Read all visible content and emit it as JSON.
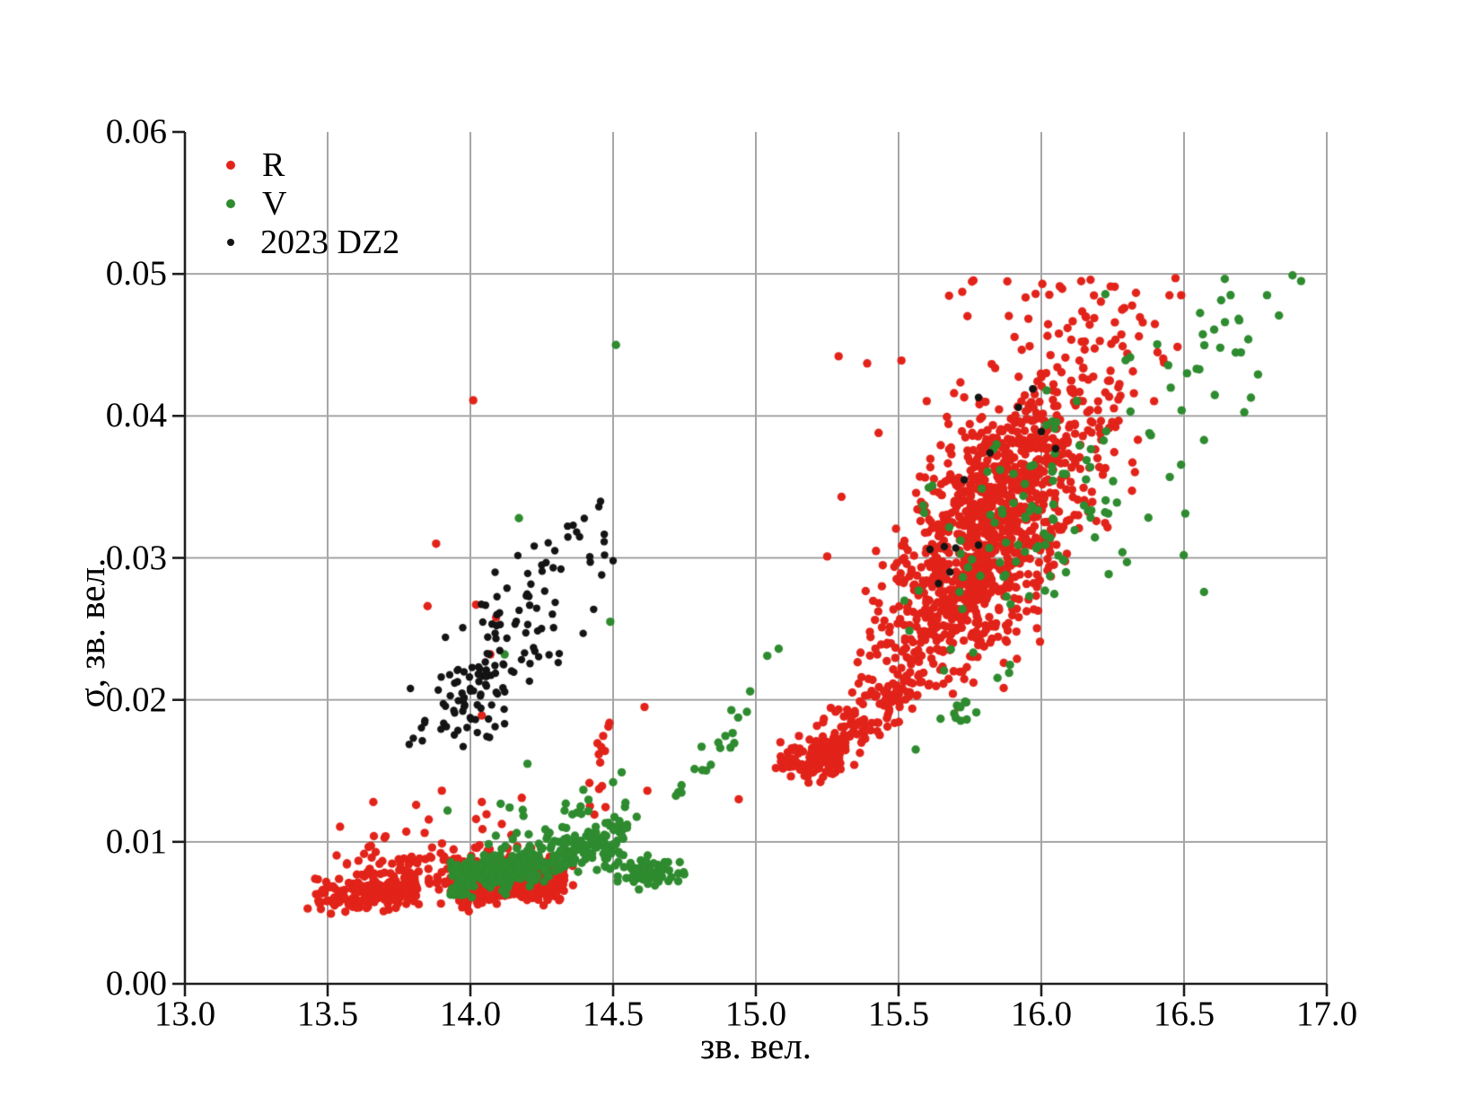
{
  "chart_data": {
    "type": "scatter",
    "xlabel": "зв. вел.",
    "ylabel": "σ, зв. вел.",
    "xlim": [
      13.0,
      17.0
    ],
    "ylim": [
      0.0,
      0.06
    ],
    "grid": {
      "show": true,
      "color": "#a6a6a6",
      "x_values": [
        13.5,
        14.0,
        14.5,
        15.0,
        15.5,
        16.0,
        16.5,
        17.0
      ],
      "y_values": [
        0.01,
        0.02,
        0.03,
        0.04,
        0.05
      ]
    },
    "axis_color": "#1f1f1f",
    "x_ticks": [
      {
        "value": 13.0,
        "label": "13.0"
      },
      {
        "value": 13.5,
        "label": "13.5"
      },
      {
        "value": 14.0,
        "label": "14.0"
      },
      {
        "value": 14.5,
        "label": "14.5"
      },
      {
        "value": 15.0,
        "label": "15.0"
      },
      {
        "value": 15.5,
        "label": "15.5"
      },
      {
        "value": 16.0,
        "label": "16.0"
      },
      {
        "value": 16.5,
        "label": "16.5"
      },
      {
        "value": 17.0,
        "label": "17.0"
      }
    ],
    "y_ticks": [
      {
        "value": 0.0,
        "label": "0.00"
      },
      {
        "value": 0.01,
        "label": "0.01"
      },
      {
        "value": 0.02,
        "label": "0.02"
      },
      {
        "value": 0.03,
        "label": "0.03"
      },
      {
        "value": 0.04,
        "label": "0.04"
      },
      {
        "value": 0.05,
        "label": "0.05"
      },
      {
        "value": 0.06,
        "label": "0.06"
      }
    ],
    "legend": [
      {
        "label": "R",
        "color": "#e2231a",
        "marker": "dot-big"
      },
      {
        "label": "V",
        "color": "#2e8b2f",
        "marker": "dot-big"
      },
      {
        "label": "2023 DZ2",
        "color": "#141414",
        "marker": "dot-small"
      }
    ],
    "legend_position": "upper-left",
    "seed": 20230316,
    "series": [
      {
        "name": "R",
        "color": "#e2231a",
        "radius": 4.7,
        "clusters": [
          {
            "kind": "band",
            "n": 160,
            "x0": 13.45,
            "x1": 13.82,
            "y0": 0.006,
            "y1": 0.0067,
            "sy": 0.00045
          },
          {
            "kind": "band",
            "n": 110,
            "x0": 13.6,
            "x1": 13.98,
            "y0": 0.0071,
            "y1": 0.008,
            "sy": 0.00085
          },
          {
            "kind": "band",
            "n": 240,
            "x0": 13.96,
            "x1": 14.33,
            "y0": 0.0063,
            "y1": 0.007,
            "sy": 0.00055
          },
          {
            "kind": "band",
            "n": 70,
            "x0": 14.0,
            "x1": 14.36,
            "y0": 0.0077,
            "y1": 0.0085,
            "sy": 0.00075
          },
          {
            "kind": "band",
            "n": 26,
            "x0": 13.52,
            "x1": 14.2,
            "y0": 0.0092,
            "y1": 0.0102,
            "sy": 0.0012
          },
          {
            "kind": "gauss",
            "n": 14,
            "cx": 14.455,
            "cy": 0.0148,
            "sx": 0.03,
            "sy": 0.0022,
            "rho": 0.3,
            "clip": [
              14.38,
              14.53,
              0.0112,
              0.0185
            ]
          },
          {
            "kind": "band",
            "n": 95,
            "x0": 15.08,
            "x1": 15.3,
            "y0": 0.0155,
            "y1": 0.0163,
            "sy": 0.00065
          },
          {
            "kind": "band",
            "n": 120,
            "x0": 15.18,
            "x1": 15.55,
            "y0": 0.016,
            "y1": 0.0212,
            "sy": 0.0011
          },
          {
            "kind": "band",
            "n": 45,
            "x0": 15.35,
            "x1": 15.72,
            "y0": 0.0208,
            "y1": 0.0252,
            "sy": 0.0016
          },
          {
            "kind": "gauss",
            "n": 950,
            "cx": 15.8,
            "cy": 0.031,
            "sx": 0.155,
            "sy": 0.0048,
            "rho": 0.6,
            "clip": [
              15.36,
              16.32,
              0.0192,
              0.0478
            ]
          },
          {
            "kind": "gauss",
            "n": 230,
            "cx": 16.02,
            "cy": 0.0395,
            "sx": 0.21,
            "sy": 0.0048,
            "rho": 0.42,
            "clip": [
              15.45,
              16.5,
              0.0265,
              0.05
            ]
          },
          {
            "kind": "band",
            "n": 16,
            "x0": 15.62,
            "x1": 16.28,
            "y0": 0.0478,
            "y1": 0.0492,
            "sy": 0.0008
          },
          {
            "kind": "gauss",
            "n": 22,
            "cx": 15.52,
            "cy": 0.0275,
            "sx": 0.09,
            "sy": 0.0035,
            "rho": 0.2,
            "clip": [
              15.3,
              15.72,
              0.021,
              0.037
            ]
          }
        ],
        "points": [
          [
            13.43,
            0.0053
          ],
          [
            13.47,
            0.0057
          ],
          [
            13.66,
            0.0128
          ],
          [
            13.81,
            0.0126
          ],
          [
            13.9,
            0.0136
          ],
          [
            14.04,
            0.0128
          ],
          [
            14.02,
            0.0116
          ],
          [
            14.18,
            0.0131
          ],
          [
            13.85,
            0.0266
          ],
          [
            13.88,
            0.031
          ],
          [
            14.02,
            0.0267
          ],
          [
            14.04,
            0.0189
          ],
          [
            14.01,
            0.0411
          ],
          [
            14.09,
            0.0258
          ],
          [
            14.07,
            0.0232
          ],
          [
            14.61,
            0.0195
          ],
          [
            14.62,
            0.0136
          ],
          [
            14.94,
            0.013
          ],
          [
            15.25,
            0.0301
          ],
          [
            15.3,
            0.0343
          ],
          [
            15.29,
            0.0442
          ],
          [
            15.39,
            0.0437
          ],
          [
            15.51,
            0.0439
          ],
          [
            15.43,
            0.0388
          ],
          [
            15.07,
            0.0152
          ],
          [
            16.47,
            0.0497
          ],
          [
            16.49,
            0.0485
          ]
        ]
      },
      {
        "name": "V",
        "color": "#2e8b2f",
        "radius": 4.7,
        "clusters": [
          {
            "kind": "band",
            "n": 290,
            "x0": 13.93,
            "x1": 14.47,
            "y0": 0.0071,
            "y1": 0.01,
            "sy": 0.00075
          },
          {
            "kind": "band",
            "n": 85,
            "x0": 14.03,
            "x1": 14.22,
            "y0": 0.0076,
            "y1": 0.0082,
            "sy": 0.00045
          },
          {
            "kind": "gauss",
            "n": 65,
            "cx": 14.625,
            "cy": 0.0079,
            "sx": 0.055,
            "sy": 0.00048,
            "rho": 0.2,
            "clip": [
              14.5,
              14.76,
              0.0066,
              0.0093
            ]
          },
          {
            "kind": "gauss",
            "n": 42,
            "cx": 14.51,
            "cy": 0.0102,
            "sx": 0.032,
            "sy": 0.00125,
            "rho": 0.1,
            "clip": [
              14.43,
              14.6,
              0.008,
              0.013
            ]
          },
          {
            "kind": "band",
            "n": 14,
            "x0": 14.08,
            "x1": 14.42,
            "y0": 0.0112,
            "y1": 0.0125,
            "sy": 0.0008
          },
          {
            "kind": "band",
            "n": 18,
            "x0": 14.72,
            "x1": 15.0,
            "y0": 0.0133,
            "y1": 0.02,
            "sy": 0.0009
          },
          {
            "kind": "gauss",
            "n": 12,
            "cx": 15.7,
            "cy": 0.0189,
            "sx": 0.042,
            "sy": 0.00055,
            "rho": 0.3,
            "clip": [
              15.6,
              15.79,
              0.0177,
              0.0201
            ]
          },
          {
            "kind": "gauss",
            "n": 112,
            "cx": 16.02,
            "cy": 0.033,
            "sx": 0.24,
            "sy": 0.0055,
            "rho": 0.5,
            "clip": [
              15.52,
              16.52,
              0.0215,
              0.0487
            ]
          },
          {
            "kind": "gauss",
            "n": 26,
            "cx": 16.65,
            "cy": 0.0452,
            "sx": 0.13,
            "sy": 0.0028,
            "rho": 0.3,
            "clip": [
              16.36,
              16.93,
              0.0385,
              0.0501
            ]
          }
        ],
        "points": [
          [
            14.51,
            0.045
          ],
          [
            14.2,
            0.0155
          ],
          [
            14.5,
            0.0142
          ],
          [
            14.53,
            0.0149
          ],
          [
            13.92,
            0.0122
          ],
          [
            14.33,
            0.0122
          ],
          [
            14.17,
            0.0328
          ],
          [
            14.12,
            0.0232
          ],
          [
            14.49,
            0.0255
          ],
          [
            15.04,
            0.0231
          ],
          [
            15.08,
            0.0236
          ],
          [
            14.98,
            0.0206
          ],
          [
            15.56,
            0.0165
          ],
          [
            16.88,
            0.0499
          ],
          [
            16.91,
            0.0495
          ],
          [
            16.57,
            0.0383
          ],
          [
            16.45,
            0.0357
          ],
          [
            16.3,
            0.0297
          ],
          [
            16.57,
            0.0276
          ]
        ]
      },
      {
        "name": "2023 DZ2",
        "color": "#141414",
        "radius": 4.2,
        "clusters": [
          {
            "kind": "gauss",
            "n": 105,
            "cx": 14.07,
            "cy": 0.022,
            "sx": 0.155,
            "sy": 0.004,
            "rho": 0.78,
            "clip": [
              13.77,
              14.52,
              0.0167,
              0.034
            ]
          },
          {
            "kind": "gauss",
            "n": 25,
            "cx": 13.97,
            "cy": 0.02,
            "sx": 0.065,
            "sy": 0.0014,
            "rho": 0.3,
            "clip": [
              13.84,
              14.12,
              0.0175,
              0.0228
            ]
          },
          {
            "kind": "band",
            "n": 10,
            "x0": 14.18,
            "x1": 14.47,
            "y0": 0.0282,
            "y1": 0.0318,
            "sy": 0.0013
          }
        ],
        "points": [
          [
            13.8,
            0.0173
          ],
          [
            13.84,
            0.0184
          ],
          [
            13.79,
            0.0208
          ],
          [
            14.45,
            0.0336
          ],
          [
            14.47,
            0.0302
          ],
          [
            14.46,
            0.0288
          ],
          [
            14.36,
            0.0323
          ],
          [
            14.25,
            0.0295
          ],
          [
            14.29,
            0.0293
          ],
          [
            14.5,
            0.0298
          ],
          [
            14.42,
            0.0297
          ],
          [
            15.61,
            0.0306
          ],
          [
            15.66,
            0.0308
          ],
          [
            15.7,
            0.0307
          ],
          [
            15.78,
            0.0309
          ],
          [
            15.68,
            0.029
          ],
          [
            15.73,
            0.0355
          ],
          [
            15.82,
            0.0374
          ],
          [
            15.78,
            0.0413
          ],
          [
            15.92,
            0.0406
          ],
          [
            15.97,
            0.0419
          ],
          [
            16.0,
            0.0389
          ],
          [
            16.05,
            0.0377
          ],
          [
            15.64,
            0.0282
          ]
        ]
      }
    ]
  }
}
